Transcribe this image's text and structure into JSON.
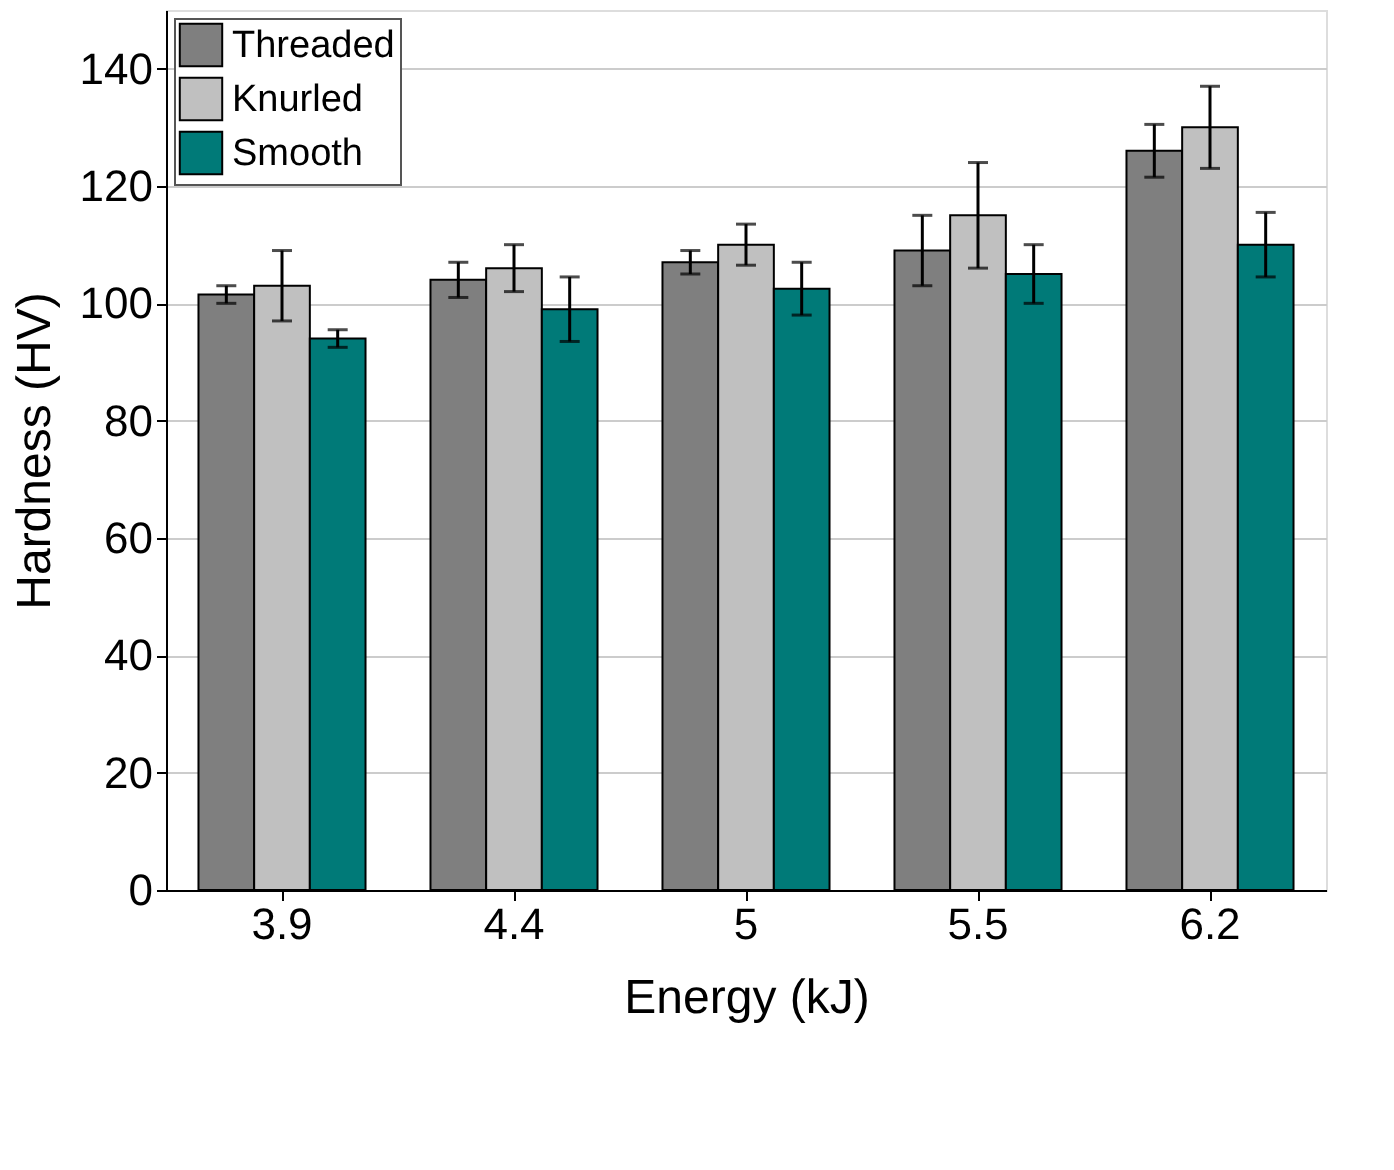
{
  "chart_data": {
    "type": "bar",
    "xlabel": "Energy (kJ)",
    "ylabel": "Hardness (HV)",
    "categories": [
      "3.9",
      "4.4",
      "5",
      "5.5",
      "6.2"
    ],
    "series": [
      {
        "name": "Threaded",
        "color": "#7f7f7f",
        "values": [
          101.5,
          104,
          107,
          109,
          126
        ],
        "errors": [
          1.5,
          3,
          2,
          6,
          4.5
        ]
      },
      {
        "name": "Knurled",
        "color": "#c0c0c0",
        "values": [
          103,
          106,
          110,
          115,
          130
        ],
        "errors": [
          6,
          4,
          3.5,
          9,
          7
        ]
      },
      {
        "name": "Smooth",
        "color": "#007a78",
        "values": [
          94,
          99,
          102.5,
          105,
          110
        ],
        "errors": [
          1.5,
          5.5,
          4.5,
          5,
          5.5
        ]
      }
    ],
    "ylim": [
      0,
      150
    ],
    "yticks": [
      0,
      20,
      40,
      60,
      80,
      100,
      120,
      140
    ],
    "grid": "y",
    "legend": "top left"
  }
}
